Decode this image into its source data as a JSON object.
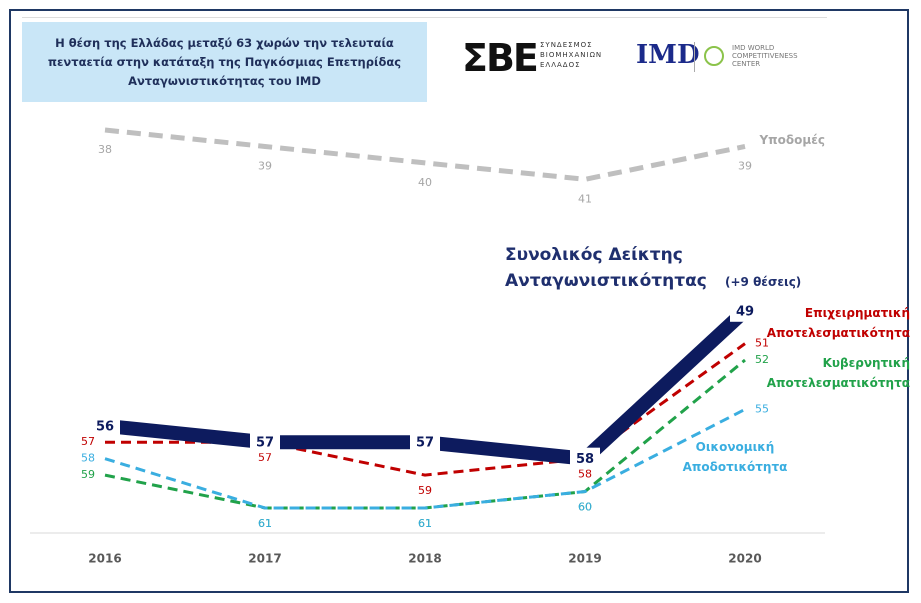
{
  "header": {
    "title": "Η θέση της Ελλάδας μεταξύ 63 χωρών την τελευταία πενταετία στην κατάταξη της Παγκόσμιας Επετηρίδας Ανταγωνιστικότητας του IMD",
    "logo1_mark": "ΣΒΕ",
    "logo1_text": "ΣΥΝΔΕΣΜΟΣ ΒΙΟΜΗΧΑΝΙΩΝ ΕΛΛΑΔΟΣ",
    "logo2_mark": "IMD",
    "logo2_text": "IMD WORLD COMPETITIVENESS CENTER"
  },
  "chart_data": {
    "type": "line",
    "categories": [
      "2016",
      "2017",
      "2018",
      "2019",
      "2020"
    ],
    "ylim": [
      62,
      37
    ],
    "annotation": "(+9 θέσεις)",
    "series": [
      {
        "name": "Υποδομές",
        "color": "#bfbfbf",
        "dashed": true,
        "values": [
          38,
          39,
          40,
          41,
          39
        ]
      },
      {
        "name": "Επιχειρηματική Αποτελεσματικότητα",
        "color": "#c00000",
        "dashed": true,
        "values": [
          57,
          57,
          59,
          58,
          51
        ]
      },
      {
        "name": "Κυβερνητική Αποτελεσματικότητα",
        "color": "#21a24a",
        "dashed": true,
        "values": [
          59,
          61,
          61,
          60,
          52
        ]
      },
      {
        "name": "Οικονομική Αποδοτικότητα",
        "color": "#3aaee0",
        "dashed": true,
        "values": [
          58,
          61,
          61,
          60,
          55
        ]
      },
      {
        "name": "Συνολικός Δείκτης Ανταγωνιστικότητας",
        "color": "#0d1b5e",
        "dashed": false,
        "emphasis": true,
        "values": [
          56,
          57,
          57,
          58,
          49
        ]
      }
    ]
  }
}
